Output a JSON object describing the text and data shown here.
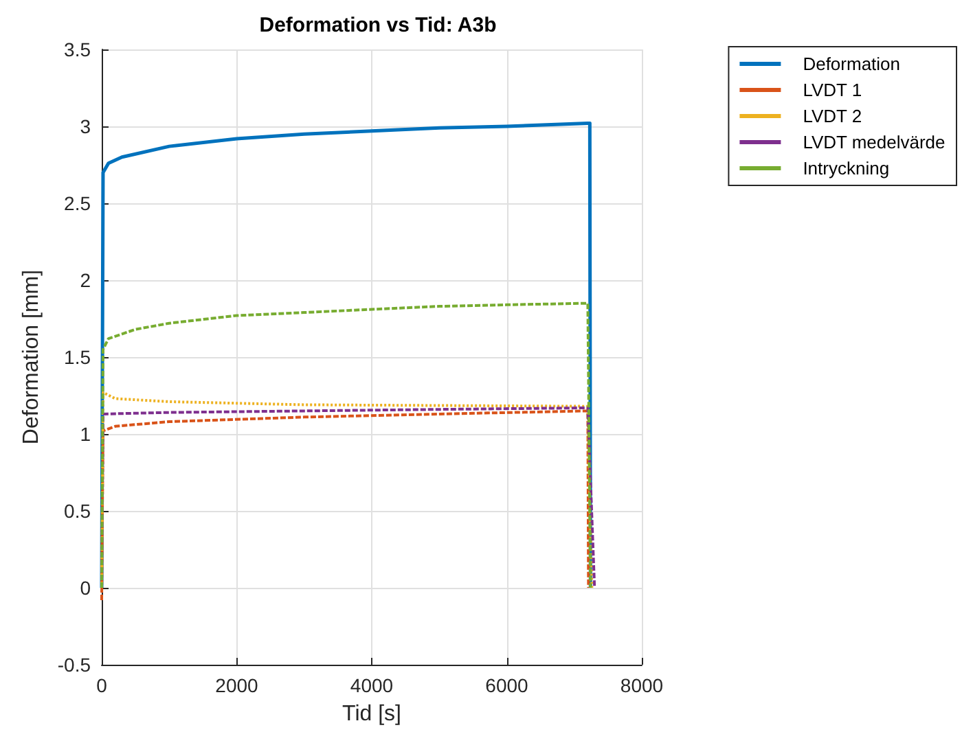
{
  "chart_data": {
    "type": "line",
    "title": "Deformation vs Tid: A3b",
    "xlabel": "Tid [s]",
    "ylabel": "Deformation [mm]",
    "xlim": [
      0,
      8000
    ],
    "xticks": [
      0,
      2000,
      4000,
      6000,
      8000
    ],
    "ylim": [
      -0.5,
      3.5
    ],
    "yticks": [
      -0.5,
      0,
      0.5,
      1,
      1.5,
      2,
      2.5,
      3,
      3.5
    ],
    "grid": true,
    "legend": "top right",
    "marker": "none",
    "series": [
      {
        "name": "Deformation",
        "color": "#0072bd",
        "line_style": "solid",
        "x": [
          0,
          20,
          100,
          300,
          1000,
          2000,
          3000,
          4000,
          5000,
          6000,
          7200,
          7230,
          7240
        ],
        "values": [
          0,
          2.7,
          2.76,
          2.8,
          2.87,
          2.92,
          2.95,
          2.97,
          2.99,
          3.0,
          3.02,
          3.02,
          0
        ]
      },
      {
        "name": "LVDT 1",
        "color": "#d95319",
        "line_style": "dashed",
        "x": [
          0,
          20,
          200,
          1000,
          3000,
          5000,
          7200,
          7210
        ],
        "values": [
          -0.08,
          1.02,
          1.05,
          1.08,
          1.11,
          1.13,
          1.15,
          0
        ]
      },
      {
        "name": "LVDT 2",
        "color": "#edb120",
        "line_style": "dotted",
        "x": [
          0,
          20,
          200,
          1000,
          3000,
          7200,
          7260
        ],
        "values": [
          0,
          1.27,
          1.23,
          1.21,
          1.19,
          1.18,
          0
        ]
      },
      {
        "name": "LVDT medelvärde",
        "color": "#7e2f8e",
        "line_style": "dashed",
        "x": [
          0,
          20,
          1000,
          3000,
          5000,
          7200,
          7300
        ],
        "values": [
          0,
          1.13,
          1.14,
          1.15,
          1.16,
          1.17,
          0
        ]
      },
      {
        "name": "Intryckning",
        "color": "#77ac30",
        "line_style": "dashed",
        "x": [
          0,
          20,
          100,
          500,
          1000,
          2000,
          3000,
          4000,
          5000,
          6000,
          7200,
          7240
        ],
        "values": [
          0,
          1.55,
          1.62,
          1.68,
          1.72,
          1.77,
          1.79,
          1.81,
          1.83,
          1.84,
          1.85,
          0
        ]
      }
    ]
  }
}
